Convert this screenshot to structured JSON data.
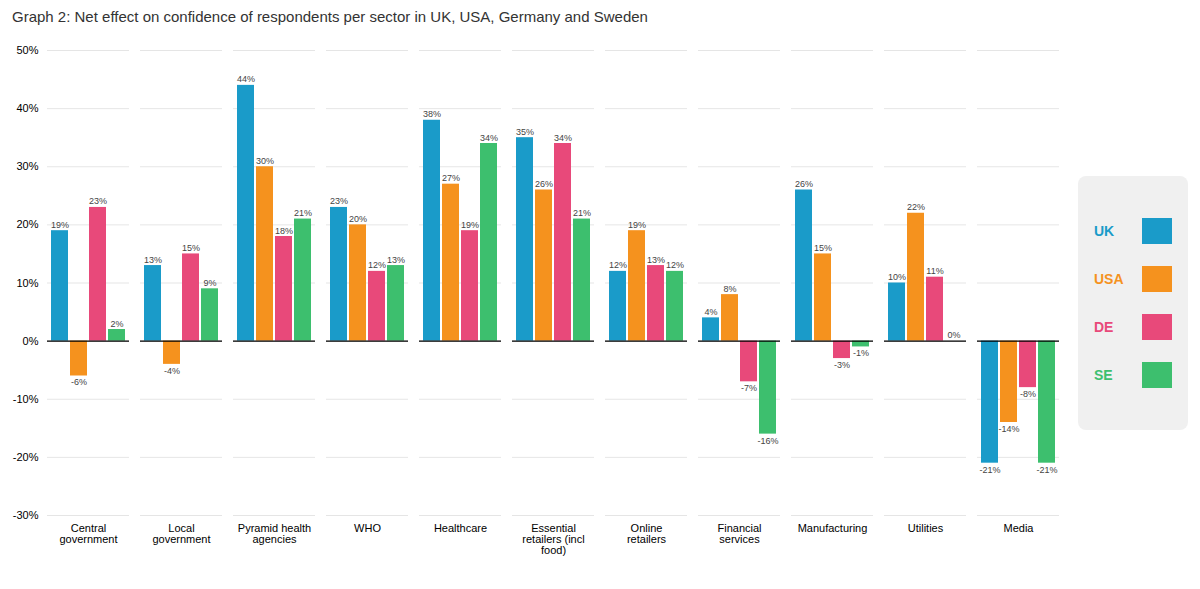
{
  "chart_data": {
    "type": "bar",
    "title": "Graph 2: Net effect on confidence of respondents per sector in UK, USA, Germany and Sweden",
    "categories": [
      "Central\ngovernment",
      "Local\ngovernment",
      "Pyramid health\nagencies",
      "WHO",
      "Healthcare",
      "Essential\nretailers (incl\nfood)",
      "Online\nretailers",
      "Financial\nservices",
      "Manufacturing",
      "Utilities",
      "Media"
    ],
    "series": [
      {
        "name": "UK",
        "color": "#1a9bc9",
        "values": [
          19,
          13,
          44,
          23,
          38,
          35,
          12,
          4,
          26,
          10,
          -21
        ],
        "value_labels": [
          "19%",
          "13%",
          "44%",
          "23%",
          "38%",
          "35%",
          "12%",
          "4%",
          "26%",
          "10%",
          "-21%"
        ]
      },
      {
        "name": "USA",
        "color": "#f5921e",
        "values": [
          -6,
          -4,
          30,
          20,
          27,
          26,
          19,
          8,
          15,
          22,
          -14
        ],
        "value_labels": [
          "-6%",
          "-4%",
          "30%",
          "20%",
          "27%",
          "26%",
          "19%",
          "8%",
          "15%",
          "22%",
          "-14%"
        ]
      },
      {
        "name": "DE",
        "color": "#e8497a",
        "values": [
          23,
          15,
          18,
          12,
          19,
          34,
          13,
          -7,
          -3,
          11,
          -8
        ],
        "value_labels": [
          "23%",
          "15%",
          "18%",
          "12%",
          "19%",
          "34%",
          "13%",
          "-7%",
          "-3%",
          "11%",
          "-8%"
        ]
      },
      {
        "name": "SE",
        "color": "#3dbf6e",
        "values": [
          2,
          9,
          21,
          13,
          34,
          21,
          12,
          -16,
          -1,
          0,
          -21
        ],
        "value_labels": [
          "2%",
          "9%",
          "21%",
          "13%",
          "34%",
          "21%",
          "12%",
          "-16%",
          "-1%",
          "0%",
          "-21%"
        ]
      }
    ],
    "ylim": [
      -30,
      50
    ],
    "yticks": [
      {
        "value": -30,
        "label": "-30%"
      },
      {
        "value": -20,
        "label": "-20%"
      },
      {
        "value": -10,
        "label": "-10%"
      },
      {
        "value": 0,
        "label": "0%"
      },
      {
        "value": 10,
        "label": "10%"
      },
      {
        "value": 20,
        "label": "20%"
      },
      {
        "value": 30,
        "label": "30%"
      },
      {
        "value": 40,
        "label": "40%"
      },
      {
        "value": 50,
        "label": "50%"
      }
    ],
    "grid": true,
    "legend": "right",
    "data_labels": true
  }
}
